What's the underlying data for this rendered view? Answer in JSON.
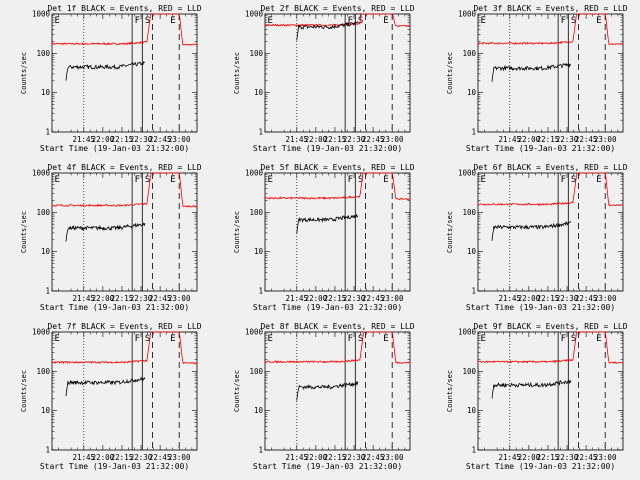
{
  "chart_data": [
    {
      "type": "line",
      "title": "Det 1f BLACK = Events, RED = LLD",
      "ylabel": "Counts/sec",
      "xlabel": "Start Time (19-Jan-03 21:32:00)",
      "xticks": [
        "21:45",
        "22:00",
        "22:15",
        "22:30",
        "22:45",
        "23:00"
      ],
      "yticks": [
        "1",
        "10",
        "100",
        "1000"
      ],
      "ylim": [
        1,
        1000
      ],
      "xlim": [
        -12,
        102
      ],
      "red_base": 175,
      "black_base": 45,
      "black_start": -1,
      "markers": [
        "E",
        "F",
        "S",
        "E"
      ],
      "series": [
        {
          "name": "Events",
          "color": "#000000"
        },
        {
          "name": "LLD",
          "color": "#ff0000"
        }
      ]
    },
    {
      "type": "line",
      "title": "Det 2f BLACK = Events, RED = LLD",
      "ylabel": "Counts/sec",
      "xlabel": "Start Time (19-Jan-03 21:32:00)",
      "xticks": [
        "21:45",
        "22:00",
        "22:15",
        "22:30",
        "22:45",
        "23:00"
      ],
      "yticks": [
        "1",
        "10",
        "100",
        "1000"
      ],
      "ylim": [
        1,
        1000
      ],
      "xlim": [
        -12,
        102
      ],
      "red_base": 520,
      "black_base": 470,
      "black_start": 13,
      "markers": [
        "E",
        "F",
        "S",
        "E"
      ],
      "series": [
        {
          "name": "Events",
          "color": "#000000"
        },
        {
          "name": "LLD",
          "color": "#ff0000"
        }
      ]
    },
    {
      "type": "line",
      "title": "Det 3f BLACK = Events, RED = LLD",
      "ylabel": "Counts/sec",
      "xlabel": "Start Time (19-Jan-03 21:32:00)",
      "xticks": [
        "21:45",
        "22:00",
        "22:15",
        "22:30",
        "22:45",
        "23:00"
      ],
      "yticks": [
        "1",
        "10",
        "100",
        "1000"
      ],
      "ylim": [
        1,
        1000
      ],
      "xlim": [
        -12,
        102
      ],
      "red_base": 180,
      "black_base": 42,
      "black_start": -1,
      "markers": [
        "E",
        "F",
        "S",
        "E"
      ],
      "series": [
        {
          "name": "Events",
          "color": "#000000"
        },
        {
          "name": "LLD",
          "color": "#ff0000"
        }
      ]
    },
    {
      "type": "line",
      "title": "Det 4f BLACK = Events, RED = LLD",
      "ylabel": "Counts/sec",
      "xlabel": "Start Time (19-Jan-03 21:32:00)",
      "xticks": [
        "21:45",
        "22:00",
        "22:15",
        "22:30",
        "22:45",
        "23:00"
      ],
      "yticks": [
        "1",
        "10",
        "100",
        "1000"
      ],
      "ylim": [
        1,
        1000
      ],
      "xlim": [
        -12,
        102
      ],
      "red_base": 150,
      "black_base": 40,
      "black_start": -1,
      "markers": [
        "E",
        "F",
        "S",
        "E"
      ],
      "series": [
        {
          "name": "Events",
          "color": "#000000"
        },
        {
          "name": "LLD",
          "color": "#ff0000"
        }
      ]
    },
    {
      "type": "line",
      "title": "Det 5f BLACK = Events, RED = LLD",
      "ylabel": "Counts/sec",
      "xlabel": "Start Time (19-Jan-03 21:32:00)",
      "xticks": [
        "21:45",
        "22:00",
        "22:15",
        "22:30",
        "22:45",
        "23:00"
      ],
      "yticks": [
        "1",
        "10",
        "100",
        "1000"
      ],
      "ylim": [
        1,
        1000
      ],
      "xlim": [
        -12,
        102
      ],
      "red_base": 230,
      "black_base": 65,
      "black_start": 13,
      "markers": [
        "E",
        "F",
        "S",
        "E"
      ],
      "series": [
        {
          "name": "Events",
          "color": "#000000"
        },
        {
          "name": "LLD",
          "color": "#ff0000"
        }
      ]
    },
    {
      "type": "line",
      "title": "Det 6f BLACK = Events, RED = LLD",
      "ylabel": "Counts/sec",
      "xlabel": "Start Time (19-Jan-03 21:32:00)",
      "xticks": [
        "21:45",
        "22:00",
        "22:15",
        "22:30",
        "22:45",
        "23:00"
      ],
      "yticks": [
        "1",
        "10",
        "100",
        "1000"
      ],
      "ylim": [
        1,
        1000
      ],
      "xlim": [
        -12,
        102
      ],
      "red_base": 160,
      "black_base": 42,
      "black_start": -1,
      "markers": [
        "E",
        "F",
        "S",
        "E"
      ],
      "series": [
        {
          "name": "Events",
          "color": "#000000"
        },
        {
          "name": "LLD",
          "color": "#ff0000"
        }
      ]
    },
    {
      "type": "line",
      "title": "Det 7f BLACK = Events, RED = LLD",
      "ylabel": "Counts/sec",
      "xlabel": "Start Time (19-Jan-03 21:32:00)",
      "xticks": [
        "21:45",
        "22:00",
        "22:15",
        "22:30",
        "22:45",
        "23:00"
      ],
      "yticks": [
        "1",
        "10",
        "100",
        "1000"
      ],
      "ylim": [
        1,
        1000
      ],
      "xlim": [
        -12,
        102
      ],
      "red_base": 170,
      "black_base": 52,
      "black_start": -1,
      "markers": [
        "E",
        "F",
        "S",
        "E"
      ],
      "series": [
        {
          "name": "Events",
          "color": "#000000"
        },
        {
          "name": "LLD",
          "color": "#ff0000"
        }
      ]
    },
    {
      "type": "line",
      "title": "Det 8f BLACK = Events, RED = LLD",
      "ylabel": "Counts/sec",
      "xlabel": "Start Time (19-Jan-03 21:32:00)",
      "xticks": [
        "21:45",
        "22:00",
        "22:15",
        "22:30",
        "22:45",
        "23:00"
      ],
      "yticks": [
        "1",
        "10",
        "100",
        "1000"
      ],
      "ylim": [
        1,
        1000
      ],
      "xlim": [
        -12,
        102
      ],
      "red_base": 175,
      "black_base": 40,
      "black_start": 13,
      "markers": [
        "E",
        "F",
        "S",
        "E"
      ],
      "series": [
        {
          "name": "Events",
          "color": "#000000"
        },
        {
          "name": "LLD",
          "color": "#ff0000"
        }
      ]
    },
    {
      "type": "line",
      "title": "Det 9f BLACK = Events, RED = LLD",
      "ylabel": "Counts/sec",
      "xlabel": "Start Time (19-Jan-03 21:32:00)",
      "xticks": [
        "21:45",
        "22:00",
        "22:15",
        "22:30",
        "22:45",
        "23:00"
      ],
      "yticks": [
        "1",
        "10",
        "100",
        "1000"
      ],
      "ylim": [
        1,
        1000
      ],
      "xlim": [
        -12,
        102
      ],
      "red_base": 175,
      "black_base": 45,
      "black_start": -1,
      "markers": [
        "E",
        "F",
        "S",
        "E"
      ],
      "series": [
        {
          "name": "Events",
          "color": "#000000"
        },
        {
          "name": "LLD",
          "color": "#ff0000"
        }
      ]
    }
  ]
}
